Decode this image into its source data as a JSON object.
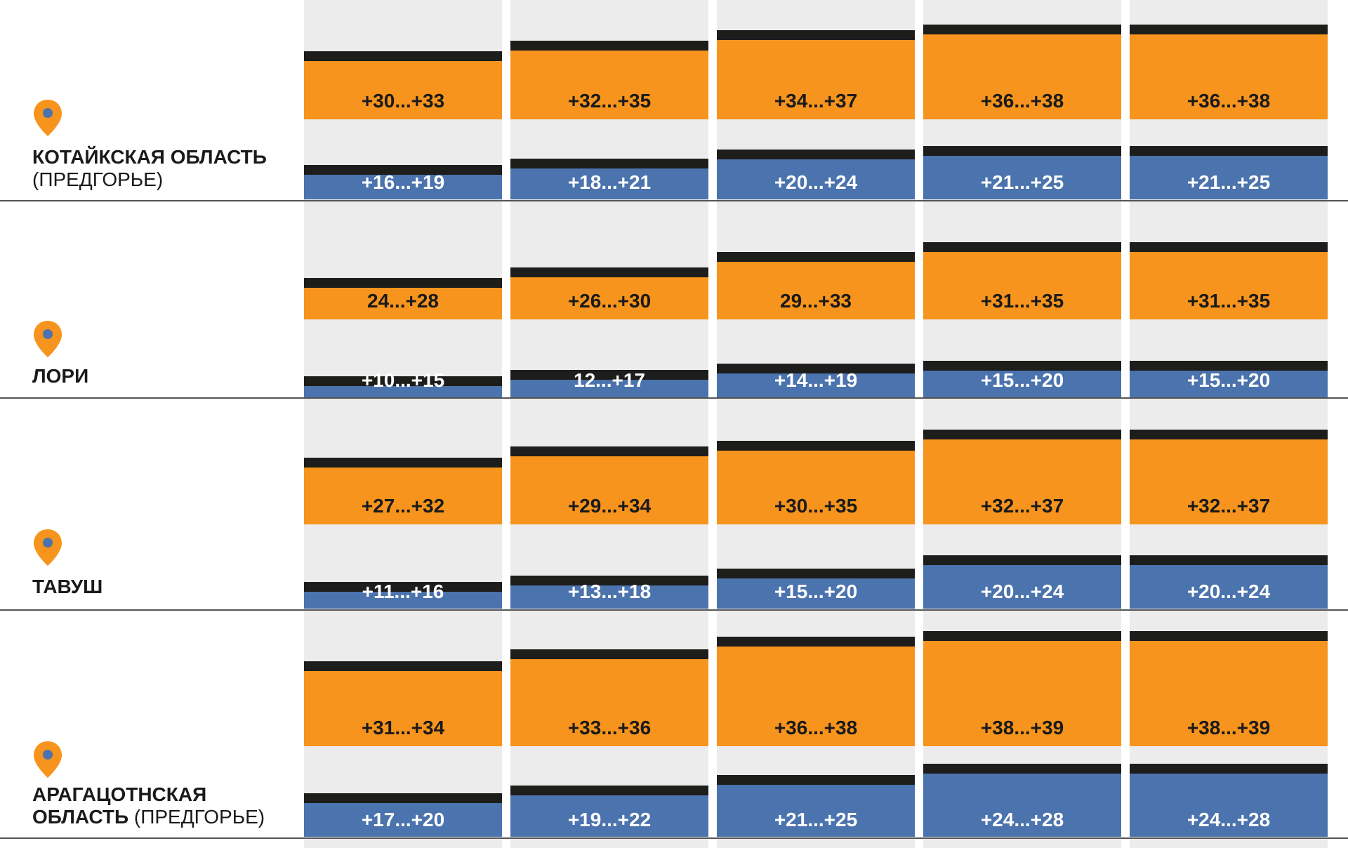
{
  "colors": {
    "day": "#f7941d",
    "night": "#4b73ad",
    "column_bg": "#ececec",
    "topline": "#1d1d1b",
    "pin": "#f7941d",
    "pin_dot": "#4b73ad"
  },
  "chart_data": {
    "type": "bar",
    "unit": "°C",
    "rows": [
      {
        "region": "КОТАЙКСКАЯ ОБЛАСТЬ",
        "region_sub": "(ПРЕДГОРЬЕ)",
        "day_labels": [
          "+30...+33",
          "+32...+35",
          "+34...+37",
          "+36...+38",
          "+36...+38"
        ],
        "day_ranges": [
          [
            30,
            33
          ],
          [
            32,
            35
          ],
          [
            34,
            37
          ],
          [
            36,
            38
          ],
          [
            36,
            38
          ]
        ],
        "night_labels": [
          "+16...+19",
          "+18...+21",
          "+20...+24",
          "+21...+25",
          "+21...+25"
        ],
        "night_ranges": [
          [
            16,
            19
          ],
          [
            18,
            21
          ],
          [
            20,
            24
          ],
          [
            21,
            25
          ],
          [
            21,
            25
          ]
        ]
      },
      {
        "region": "ЛОРИ",
        "region_sub": "",
        "day_labels": [
          "24...+28",
          "+26...+30",
          "29...+33",
          "+31...+35",
          "+31...+35"
        ],
        "day_ranges": [
          [
            24,
            28
          ],
          [
            26,
            30
          ],
          [
            29,
            33
          ],
          [
            31,
            35
          ],
          [
            31,
            35
          ]
        ],
        "night_labels": [
          "+10...+15",
          "12...+17",
          "+14...+19",
          "+15...+20",
          "+15...+20"
        ],
        "night_ranges": [
          [
            10,
            15
          ],
          [
            12,
            17
          ],
          [
            14,
            19
          ],
          [
            15,
            20
          ],
          [
            15,
            20
          ]
        ]
      },
      {
        "region": "ТАВУШ",
        "region_sub": "",
        "day_labels": [
          "+27...+32",
          "+29...+34",
          "+30...+35",
          "+32...+37",
          "+32...+37"
        ],
        "day_ranges": [
          [
            27,
            32
          ],
          [
            29,
            34
          ],
          [
            30,
            35
          ],
          [
            32,
            37
          ],
          [
            32,
            37
          ]
        ],
        "night_labels": [
          "+11...+16",
          "+13...+18",
          "+15...+20",
          "+20...+24",
          "+20...+24"
        ],
        "night_ranges": [
          [
            11,
            16
          ],
          [
            13,
            18
          ],
          [
            15,
            20
          ],
          [
            20,
            24
          ],
          [
            20,
            24
          ]
        ]
      },
      {
        "region": "АРАГАЦОТНСКАЯ",
        "region_line2": "ОБЛАСТЬ",
        "region_sub": "(ПРЕДГОРЬЕ)",
        "day_labels": [
          "+31...+34",
          "+33...+36",
          "+36...+38",
          "+38...+39",
          "+38...+39"
        ],
        "day_ranges": [
          [
            31,
            34
          ],
          [
            33,
            36
          ],
          [
            36,
            38
          ],
          [
            38,
            39
          ],
          [
            38,
            39
          ]
        ],
        "night_labels": [
          "+17...+20",
          "+19...+22",
          "+21...+25",
          "+24...+28",
          "+24...+28"
        ],
        "night_ranges": [
          [
            17,
            20
          ],
          [
            19,
            22
          ],
          [
            21,
            25
          ],
          [
            24,
            28
          ],
          [
            24,
            28
          ]
        ]
      }
    ]
  }
}
